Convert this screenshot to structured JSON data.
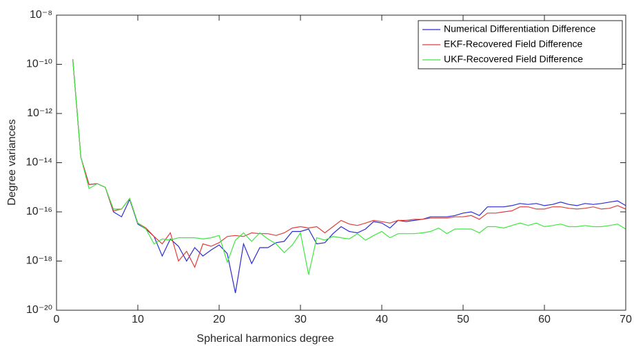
{
  "chart_data": {
    "type": "line",
    "xlabel": "Spherical harmonics degree",
    "ylabel": "Degree variances",
    "log_y": true,
    "grid": false,
    "legend": "upper right",
    "xlim": [
      0,
      70
    ],
    "xticks": [
      0,
      10,
      20,
      30,
      40,
      50,
      60,
      70
    ],
    "ylim": [
      1e-20,
      1e-08
    ],
    "yticks": [
      {
        "value": 1e-20,
        "label": "10⁻²⁰"
      },
      {
        "value": 1e-18,
        "label": "10⁻¹⁸"
      },
      {
        "value": 1e-16,
        "label": "10⁻¹⁶"
      },
      {
        "value": 1e-14,
        "label": "10⁻¹⁴"
      },
      {
        "value": 1e-12,
        "label": "10⁻¹²"
      },
      {
        "value": 1e-10,
        "label": "10⁻¹⁰"
      },
      {
        "value": 1e-08,
        "label": "10⁻⁸"
      }
    ],
    "x": [
      2,
      3,
      4,
      5,
      6,
      7,
      8,
      9,
      10,
      11,
      12,
      13,
      14,
      15,
      16,
      17,
      18,
      19,
      20,
      21,
      22,
      23,
      24,
      25,
      26,
      27,
      28,
      29,
      30,
      31,
      32,
      33,
      34,
      35,
      36,
      37,
      38,
      39,
      40,
      41,
      42,
      43,
      44,
      45,
      46,
      47,
      48,
      49,
      50,
      51,
      52,
      53,
      54,
      55,
      56,
      57,
      58,
      59,
      60,
      61,
      62,
      63,
      64,
      65,
      66,
      67,
      68,
      69,
      70
    ],
    "series": [
      {
        "name": "Numerical Differentiation Difference",
        "color": "#2b2bd0",
        "values": [
          1.6e-10,
          1.6e-14,
          1.3e-15,
          1.4e-15,
          1e-15,
          1e-16,
          6.3e-17,
          3.2e-16,
          3.2e-17,
          2e-17,
          1e-17,
          1.6e-18,
          7.9e-18,
          4e-18,
          1e-18,
          3.5e-18,
          1.6e-18,
          2.8e-18,
          4.5e-18,
          2e-18,
          5e-20,
          5e-18,
          7.9e-19,
          3.5e-18,
          3.5e-18,
          5.6e-18,
          6.3e-18,
          1.6e-17,
          1.6e-17,
          2e-17,
          5e-18,
          5.6e-18,
          1.3e-17,
          2.5e-17,
          1.6e-17,
          1.4e-17,
          2e-17,
          4e-17,
          3.5e-17,
          2.2e-17,
          4.5e-17,
          4e-17,
          4.5e-17,
          5e-17,
          6.3e-17,
          6.3e-17,
          6.3e-17,
          7.1e-17,
          8.9e-17,
          1e-16,
          7.1e-17,
          1.6e-16,
          1.6e-16,
          1.6e-16,
          1.8e-16,
          2.2e-16,
          2e-16,
          2.2e-16,
          1.8e-16,
          2e-16,
          2.5e-16,
          2e-16,
          1.8e-16,
          2.2e-16,
          2e-16,
          2.2e-16,
          2.5e-16,
          2.8e-16,
          1.8e-16
        ]
      },
      {
        "name": "EKF-Recovered Field Difference",
        "color": "#e03c3c",
        "values": [
          1.6e-10,
          1.6e-14,
          1.3e-15,
          1.4e-15,
          1e-15,
          1.1e-16,
          1.3e-16,
          3.5e-16,
          3.5e-17,
          2.2e-17,
          1e-17,
          5e-18,
          1.4e-17,
          1e-18,
          2.5e-18,
          5.6e-19,
          5e-18,
          4e-18,
          5.6e-18,
          1e-17,
          1.1e-17,
          1e-17,
          1.4e-17,
          1.3e-17,
          1.3e-17,
          1.1e-17,
          1.4e-17,
          2.2e-17,
          2.5e-17,
          2.2e-17,
          2.5e-17,
          1.4e-17,
          2.5e-17,
          4.5e-17,
          3.2e-17,
          2.8e-17,
          3.5e-17,
          4.5e-17,
          4e-17,
          3.5e-17,
          4.5e-17,
          4.5e-17,
          5e-17,
          5e-17,
          5.6e-17,
          5.6e-17,
          5.6e-17,
          6.3e-17,
          6.3e-17,
          7.1e-17,
          5e-17,
          8.9e-17,
          8.9e-17,
          1e-16,
          1.1e-16,
          1.6e-16,
          1.6e-16,
          1.3e-16,
          1.3e-16,
          1.6e-16,
          1.6e-16,
          1.4e-16,
          1.3e-16,
          1.4e-16,
          1.6e-16,
          1.3e-16,
          1.4e-16,
          1.8e-16,
          1.3e-16
        ]
      },
      {
        "name": "UKF-Recovered Field Difference",
        "color": "#3ee83e",
        "values": [
          1.6e-10,
          1.6e-14,
          8.9e-16,
          1.4e-15,
          1e-15,
          1.3e-16,
          1.3e-16,
          3.5e-16,
          3.5e-17,
          2e-17,
          5e-18,
          7.9e-18,
          7.1e-18,
          8.9e-18,
          8.9e-18,
          8.9e-18,
          7.9e-18,
          8.9e-18,
          1.1e-17,
          8.9e-19,
          7.1e-18,
          1.4e-17,
          6.3e-18,
          1.4e-17,
          7.9e-18,
          5e-18,
          2.2e-18,
          4.5e-18,
          1.4e-17,
          2.8e-19,
          8.9e-18,
          7.1e-18,
          1e-17,
          8.9e-18,
          7.9e-18,
          1.3e-17,
          7.1e-18,
          1.1e-17,
          1.6e-17,
          8.9e-18,
          1.3e-17,
          1.3e-17,
          1.3e-17,
          1.4e-17,
          1.6e-17,
          2.2e-17,
          1.3e-17,
          2e-17,
          2e-17,
          2e-17,
          1.4e-17,
          2.5e-17,
          2.5e-17,
          2.2e-17,
          2.8e-17,
          3.5e-17,
          2.8e-17,
          3.5e-17,
          2.5e-17,
          2.8e-17,
          3.2e-17,
          2.5e-17,
          2.5e-17,
          2.8e-17,
          2.5e-17,
          2.5e-17,
          2.8e-17,
          3.2e-17,
          2e-17
        ]
      }
    ]
  }
}
